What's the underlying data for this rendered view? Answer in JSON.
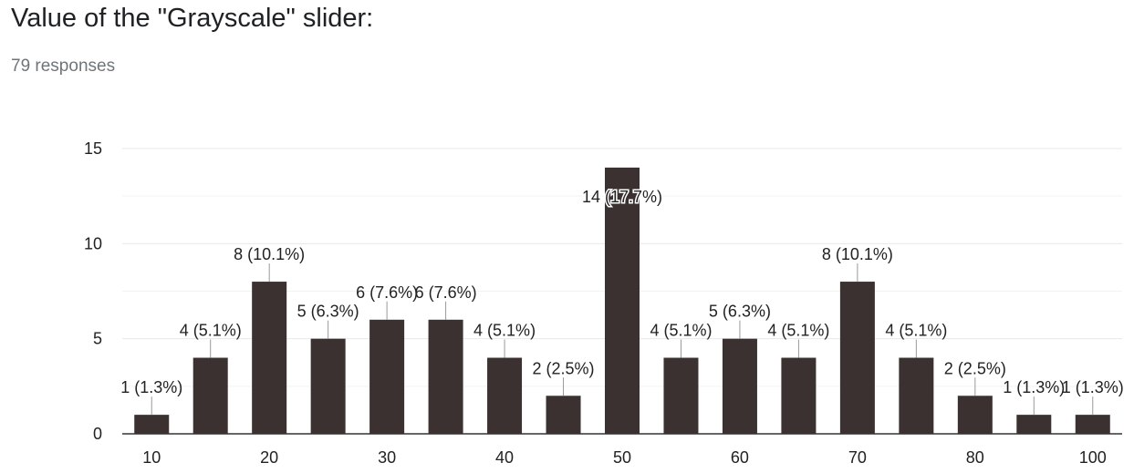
{
  "header": {
    "title": "Value of the \"Grayscale\" slider:",
    "responses": "79 responses"
  },
  "colors": {
    "bar": "#3a3130",
    "grid": "#e8e8e8",
    "axis": "#333333"
  },
  "chart_data": {
    "type": "bar",
    "title": "Value of the \"Grayscale\" slider:",
    "xlabel": "",
    "ylabel": "",
    "categories": [
      "10",
      "15",
      "20",
      "25",
      "30",
      "35",
      "40",
      "45",
      "50",
      "55",
      "60",
      "65",
      "70",
      "75",
      "80",
      "85",
      "100"
    ],
    "x_tick_labels": [
      "10",
      "20",
      "30",
      "40",
      "50",
      "60",
      "70",
      "80",
      "100"
    ],
    "values": [
      1,
      4,
      8,
      5,
      6,
      6,
      4,
      2,
      14,
      4,
      5,
      4,
      8,
      4,
      2,
      1,
      1
    ],
    "data_labels": [
      "1 (1.3%)",
      "4 (5.1%)",
      "8 (10.1%)",
      "5 (6.3%)",
      "6 (7.6%)",
      "6 (7.6%)",
      "4 (5.1%)",
      "2 (2.5%)",
      "14 (17.7%)",
      "4 (5.1%)",
      "5 (6.3%)",
      "4 (5.1%)",
      "8 (10.1%)",
      "4 (5.1%)",
      "2 (2.5%)",
      "1 (1.3%)",
      "1 (1.3%)"
    ],
    "ylim": [
      0,
      15
    ],
    "yticks": [
      0,
      5,
      10,
      15
    ],
    "grid": true,
    "legend": "none"
  }
}
